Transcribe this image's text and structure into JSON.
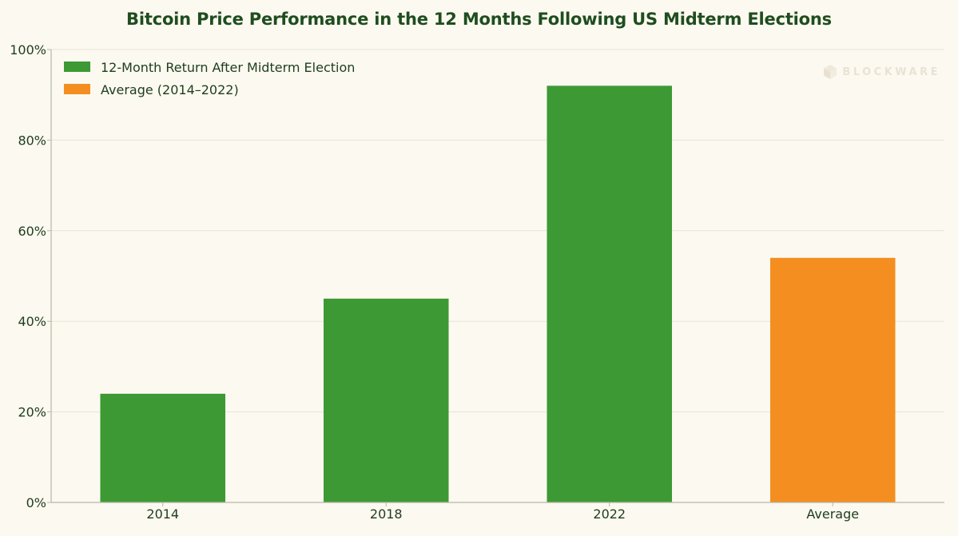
{
  "chart_data": {
    "type": "bar",
    "title": "Bitcoin Price Performance in the 12 Months Following US Midterm Elections",
    "categories": [
      "2014",
      "2018",
      "2022",
      "Average"
    ],
    "series": [
      {
        "name": "12-Month Return After Midterm Election",
        "color": "#3d9934",
        "values": [
          24,
          45,
          92,
          null
        ]
      },
      {
        "name": "Average (2014–2022)",
        "color": "#f48e20",
        "values": [
          null,
          null,
          null,
          54
        ]
      }
    ],
    "xlabel": "",
    "ylabel": "",
    "ylim": [
      0,
      100
    ],
    "yticks": [
      0,
      20,
      40,
      60,
      80,
      100
    ],
    "ytick_labels": [
      "0%",
      "20%",
      "40%",
      "60%",
      "80%",
      "100%"
    ],
    "grid": "horizontal",
    "legend_position": "top-left"
  },
  "watermark": {
    "text": "BLOCKWARE",
    "icon": "cube-icon"
  },
  "colors": {
    "background": "#fcf9f0",
    "grid": "#e8e3d6",
    "axis": "#b5b9a8",
    "text": "#1e3d1e"
  }
}
